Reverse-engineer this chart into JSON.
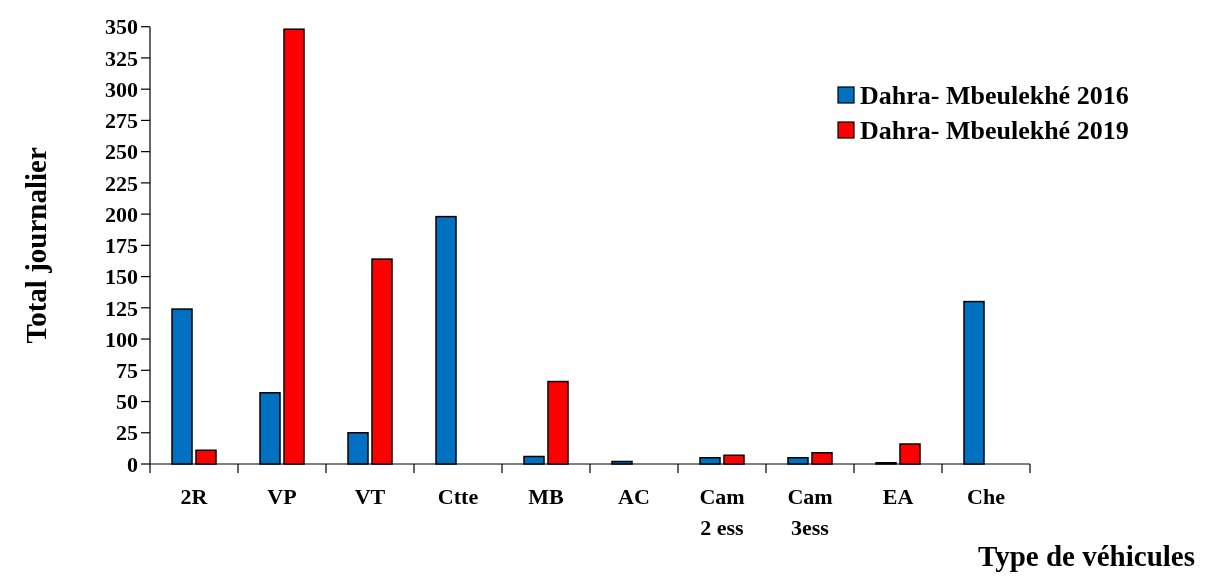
{
  "chart_data": {
    "type": "bar",
    "xlabel": "Type de véhicules",
    "ylabel": "Total journalier",
    "categories": [
      "2R",
      "VP",
      "VT",
      "Ctte",
      "MB",
      "AC",
      "Cam 2 ess",
      "Cam 3ess",
      "EA",
      "Che"
    ],
    "series": [
      {
        "name": "Dahra- Mbeulekhé 2016",
        "color": "#0070c0",
        "values": [
          124,
          57,
          25,
          198,
          6,
          2,
          5,
          5,
          1,
          130
        ]
      },
      {
        "name": "Dahra- Mbeulekhé 2019",
        "color": "#ff0000",
        "values": [
          11,
          348,
          164,
          null,
          66,
          null,
          7,
          9,
          16,
          null
        ]
      }
    ],
    "ylim": [
      0,
      350
    ],
    "yticks": [
      0,
      25,
      50,
      75,
      100,
      125,
      150,
      175,
      200,
      225,
      250,
      275,
      300,
      325,
      350
    ],
    "grid": false,
    "legend": "top right"
  }
}
